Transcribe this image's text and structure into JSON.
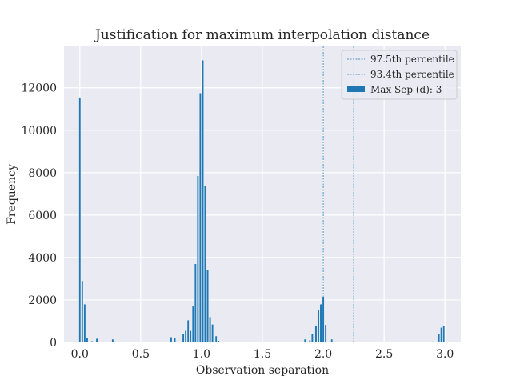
{
  "chart_data": {
    "type": "bar",
    "title": "Justification for maximum interpolation distance",
    "xlabel": "Observation separation",
    "ylabel": "Frequency",
    "xlim": [
      -0.13,
      3.13
    ],
    "ylim": [
      0,
      13950
    ],
    "xticks": [
      0.0,
      0.5,
      1.0,
      1.5,
      2.0,
      2.5,
      3.0
    ],
    "xtick_labels": [
      "0.0",
      "0.5",
      "1.0",
      "1.5",
      "2.0",
      "2.5",
      "3.0"
    ],
    "yticks": [
      0,
      2000,
      4000,
      6000,
      8000,
      10000,
      12000
    ],
    "ytick_labels": [
      "0",
      "2000",
      "4000",
      "6000",
      "8000",
      "10000",
      "12000"
    ],
    "bin_width": 0.015,
    "grid": true,
    "legend_position": "top-right",
    "bar_color": "#1f77b4",
    "line_color": "#1f77b4",
    "reference_lines": [
      {
        "label": "97.5th percentile",
        "x": 2.25
      },
      {
        "label": "93.4th percentile",
        "x": 2.0
      }
    ],
    "series": [
      {
        "name": "Max Sep (d): 3",
        "x": [
          0.0,
          0.02,
          0.04,
          0.06,
          0.1,
          0.14,
          0.27,
          0.75,
          0.78,
          0.85,
          0.87,
          0.89,
          0.91,
          0.93,
          0.95,
          0.97,
          0.99,
          1.01,
          1.03,
          1.05,
          1.07,
          1.09,
          1.12,
          1.14,
          1.85,
          1.89,
          1.91,
          1.94,
          1.96,
          1.98,
          2.0,
          2.02,
          2.07,
          2.9,
          2.95,
          2.97,
          2.99
        ],
        "values": [
          11550,
          2900,
          1800,
          200,
          60,
          180,
          150,
          250,
          200,
          400,
          550,
          1050,
          550,
          1700,
          3700,
          7850,
          11750,
          13300,
          7400,
          3400,
          1200,
          850,
          300,
          80,
          150,
          100,
          420,
          800,
          1550,
          1800,
          2150,
          830,
          150,
          50,
          400,
          700,
          780
        ]
      }
    ]
  }
}
